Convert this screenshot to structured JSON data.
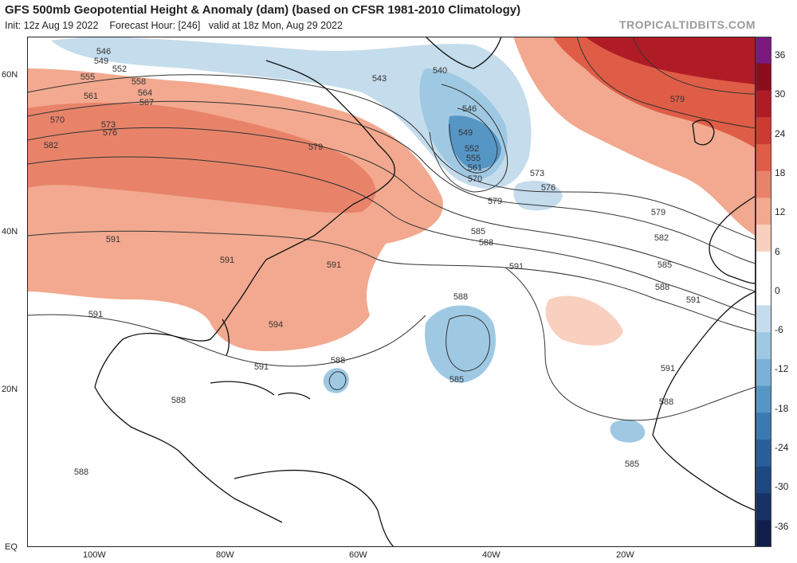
{
  "header": {
    "title": "GFS 500mb Geopotential Height & Anomaly (dam) (based on CFSR 1981-2010 Climatology)",
    "init": "Init: 12z Aug 19 2022",
    "forecast_hour": "Forecast Hour: [246]",
    "valid": "valid at 18z Mon, Aug 29 2022",
    "brand": "TROPICALTIDBITS.COM"
  },
  "axes": {
    "lat_labels": [
      "60N",
      "40N",
      "20N",
      "EQ"
    ],
    "lon_labels": [
      "100W",
      "80W",
      "60W",
      "40W",
      "20W"
    ]
  },
  "colorbar": {
    "ticks": [
      "36",
      "30",
      "24",
      "18",
      "12",
      "6",
      "0",
      "-6",
      "-12",
      "-18",
      "-24",
      "-30",
      "-36"
    ],
    "colors": [
      "#7a1a80",
      "#8c0d1e",
      "#b01c26",
      "#cc3a32",
      "#df5d47",
      "#e8836a",
      "#f2a98f",
      "#f9d0bf",
      "#ffffff",
      "#ffffff",
      "#c4dcec",
      "#9fc9e3",
      "#7ab2d7",
      "#5696c5",
      "#3a79b2",
      "#2a5f9b",
      "#1f4781",
      "#173366",
      "#0f1f4a"
    ]
  },
  "contour_labels": [
    "546",
    "549",
    "552",
    "555",
    "558",
    "561",
    "564",
    "567",
    "570",
    "573",
    "576",
    "579",
    "582",
    "585",
    "588",
    "591",
    "594",
    "540",
    "543"
  ],
  "map_colors": {
    "positive": "#f2a98f",
    "positive_strong": "#df5d47",
    "positive_max": "#b01c26",
    "negative": "#9fc9e3",
    "negative_strong": "#5696c5",
    "land_outline": "#111111",
    "contour": "#333333"
  }
}
